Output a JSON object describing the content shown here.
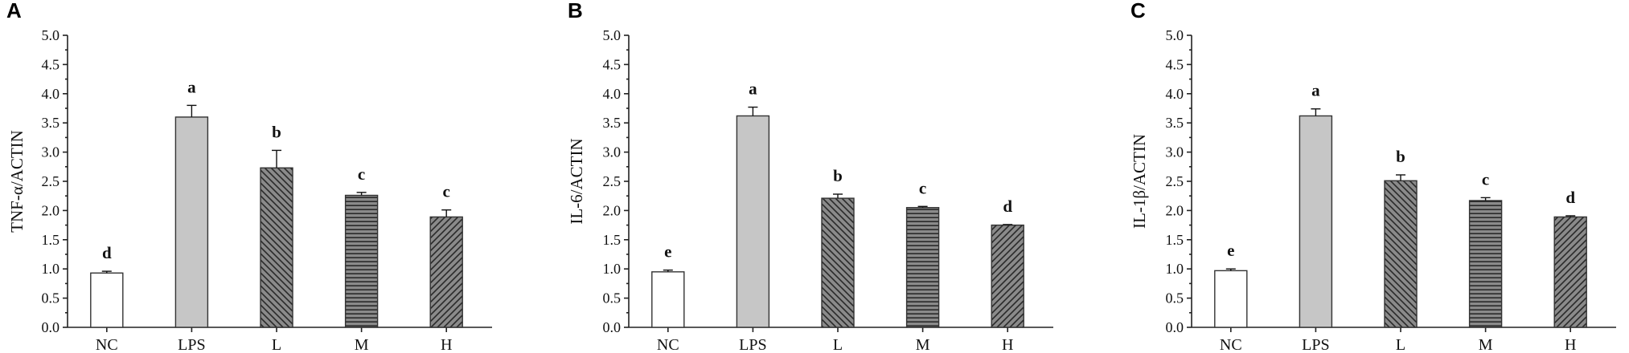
{
  "colors": {
    "nc_fill": "#ffffff",
    "lps_fill": "#c6c6c6",
    "hatch_bg": "#8a8a8a",
    "hatch_line": "#2a2a2a",
    "axis": "#222222",
    "outline": "#333333"
  },
  "chart_data": [
    {
      "panel": "A",
      "type": "bar",
      "ylabel": "TNF-α/ACTIN",
      "categories": [
        "NC",
        "LPS",
        "L",
        "M",
        "H"
      ],
      "values": [
        0.93,
        3.6,
        2.73,
        2.26,
        1.89
      ],
      "errors": [
        0.03,
        0.2,
        0.3,
        0.05,
        0.12
      ],
      "significance": [
        "d",
        "a",
        "b",
        "c",
        "c"
      ],
      "fills": [
        "white",
        "gray",
        "diag-down",
        "horizontal",
        "diag-up"
      ],
      "ylim": [
        0,
        5.0
      ],
      "yticks": [
        "0.0",
        "0.5",
        "1.0",
        "1.5",
        "2.0",
        "2.5",
        "3.0",
        "3.5",
        "4.0",
        "4.5",
        "5.0"
      ]
    },
    {
      "panel": "B",
      "type": "bar",
      "ylabel": "IL-6/ACTIN",
      "categories": [
        "NC",
        "LPS",
        "L",
        "M",
        "H"
      ],
      "values": [
        0.95,
        3.62,
        2.21,
        2.05,
        1.75
      ],
      "errors": [
        0.03,
        0.15,
        0.07,
        0.02,
        0.01
      ],
      "significance": [
        "e",
        "a",
        "b",
        "c",
        "d"
      ],
      "fills": [
        "white",
        "gray",
        "diag-down",
        "horizontal",
        "diag-up"
      ],
      "ylim": [
        0,
        5.0
      ],
      "yticks": [
        "0.0",
        "0.5",
        "1.0",
        "1.5",
        "2.0",
        "2.5",
        "3.0",
        "3.5",
        "4.0",
        "4.5",
        "5.0"
      ]
    },
    {
      "panel": "C",
      "type": "bar",
      "ylabel": "IL-1β/ACTIN",
      "categories": [
        "NC",
        "LPS",
        "L",
        "M",
        "H"
      ],
      "values": [
        0.97,
        3.62,
        2.51,
        2.17,
        1.89
      ],
      "errors": [
        0.03,
        0.12,
        0.1,
        0.05,
        0.02
      ],
      "significance": [
        "e",
        "a",
        "b",
        "c",
        "d"
      ],
      "fills": [
        "white",
        "gray",
        "diag-down",
        "horizontal",
        "diag-up"
      ],
      "ylim": [
        0,
        5.0
      ],
      "yticks": [
        "0.0",
        "0.5",
        "1.0",
        "1.5",
        "2.0",
        "2.5",
        "3.0",
        "3.5",
        "4.0",
        "4.5",
        "5.0"
      ]
    }
  ]
}
